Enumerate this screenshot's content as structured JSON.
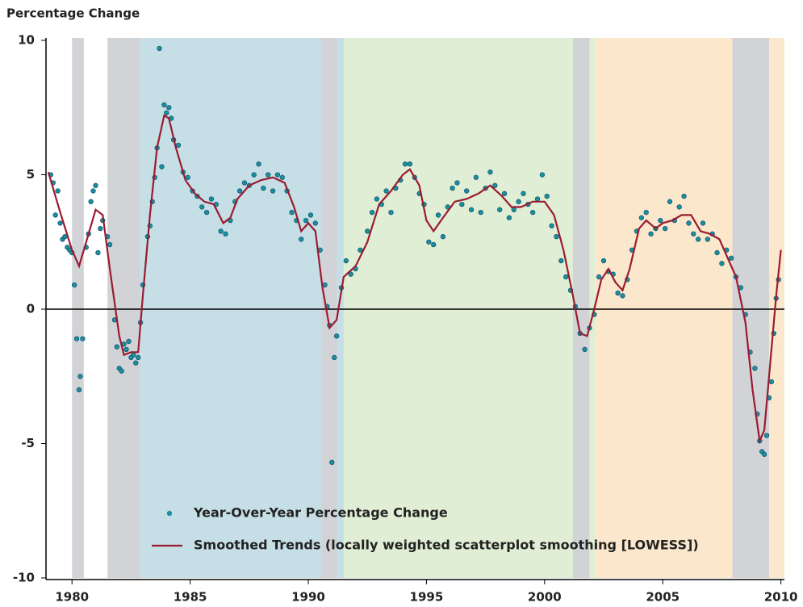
{
  "chart_data": {
    "type": "scatter",
    "y_label": "Percentage Change",
    "xlim": [
      1978.9,
      2010.15
    ],
    "ylim": [
      -10,
      10
    ],
    "xticks": [
      1980,
      1985,
      1990,
      1995,
      2000,
      2005,
      2010
    ],
    "yticks": [
      -10,
      -5,
      0,
      5,
      10
    ],
    "zero_line": 0,
    "legend": "lower center",
    "shaded_regions": [
      {
        "start": 1982.9,
        "end": 1991.5,
        "color": "#c6dee5"
      },
      {
        "start": 1991.5,
        "end": 2002.15,
        "color": "#dfeed4"
      },
      {
        "start": 2002.15,
        "end": 2010.15,
        "color": "#fbe7cb"
      },
      {
        "start": 1980.0,
        "end": 1980.5,
        "color": "#d2d3d7"
      },
      {
        "start": 1981.5,
        "end": 1982.9,
        "color": "#d2d3d7"
      },
      {
        "start": 1990.55,
        "end": 1991.2,
        "color": "#d2d3d7"
      },
      {
        "start": 2001.2,
        "end": 2001.9,
        "color": "#d2d3d7"
      },
      {
        "start": 2007.95,
        "end": 2009.5,
        "color": "#d2d3d7"
      }
    ],
    "series": [
      {
        "name": "Year-Over-Year Percentage Change",
        "type": "scatter",
        "color": "#1b8fa0",
        "x": [
          1979.1,
          1979.2,
          1979.3,
          1979.4,
          1979.5,
          1979.6,
          1979.7,
          1979.8,
          1979.9,
          1980.0,
          1980.1,
          1980.2,
          1980.3,
          1980.35,
          1980.45,
          1980.6,
          1980.7,
          1980.8,
          1980.9,
          1981.0,
          1981.1,
          1981.2,
          1981.3,
          1981.5,
          1981.6,
          1981.8,
          1981.9,
          1982.0,
          1982.1,
          1982.2,
          1982.3,
          1982.4,
          1982.5,
          1982.6,
          1982.7,
          1982.8,
          1982.9,
          1983.0,
          1983.2,
          1983.3,
          1983.4,
          1983.5,
          1983.6,
          1983.7,
          1983.8,
          1983.9,
          1984.0,
          1984.1,
          1984.2,
          1984.3,
          1984.5,
          1984.7,
          1984.9,
          1985.1,
          1985.3,
          1985.5,
          1985.7,
          1985.9,
          1986.1,
          1986.3,
          1986.5,
          1986.7,
          1986.9,
          1987.1,
          1987.3,
          1987.5,
          1987.7,
          1987.9,
          1988.1,
          1988.3,
          1988.5,
          1988.7,
          1988.9,
          1989.1,
          1989.3,
          1989.5,
          1989.7,
          1989.9,
          1990.1,
          1990.3,
          1990.5,
          1990.7,
          1990.8,
          1990.9,
          1991.0,
          1991.1,
          1991.2,
          1991.4,
          1991.6,
          1991.8,
          1992.0,
          1992.2,
          1992.5,
          1992.7,
          1992.9,
          1993.1,
          1993.3,
          1993.5,
          1993.7,
          1993.9,
          1994.1,
          1994.3,
          1994.5,
          1994.7,
          1994.9,
          1995.1,
          1995.3,
          1995.5,
          1995.7,
          1995.9,
          1996.1,
          1996.3,
          1996.5,
          1996.7,
          1996.9,
          1997.1,
          1997.3,
          1997.5,
          1997.7,
          1997.9,
          1998.1,
          1998.3,
          1998.5,
          1998.7,
          1998.9,
          1999.1,
          1999.3,
          1999.5,
          1999.7,
          1999.9,
          2000.1,
          2000.3,
          2000.5,
          2000.7,
          2000.9,
          2001.1,
          2001.3,
          2001.5,
          2001.7,
          2001.9,
          2002.1,
          2002.3,
          2002.5,
          2002.7,
          2002.9,
          2003.1,
          2003.3,
          2003.5,
          2003.7,
          2003.9,
          2004.1,
          2004.3,
          2004.5,
          2004.7,
          2004.9,
          2005.1,
          2005.3,
          2005.5,
          2005.7,
          2005.9,
          2006.1,
          2006.3,
          2006.5,
          2006.7,
          2006.9,
          2007.1,
          2007.3,
          2007.5,
          2007.7,
          2007.9,
          2008.1,
          2008.3,
          2008.5,
          2008.7,
          2008.9,
          2009.0,
          2009.1,
          2009.2,
          2009.3,
          2009.4,
          2009.5,
          2009.6,
          2009.7,
          2009.8,
          2009.9
        ],
        "values": [
          5.0,
          4.7,
          3.5,
          4.4,
          3.2,
          2.6,
          2.7,
          2.3,
          2.2,
          2.1,
          0.9,
          -1.1,
          -3.0,
          -2.5,
          -1.1,
          2.3,
          2.8,
          4.0,
          4.4,
          4.6,
          2.1,
          3.0,
          3.3,
          2.7,
          2.4,
          -0.4,
          -1.4,
          -2.2,
          -2.3,
          -1.3,
          -1.5,
          -1.2,
          -1.8,
          -1.7,
          -2.0,
          -1.8,
          -0.5,
          0.9,
          2.7,
          3.1,
          4.0,
          4.9,
          6.0,
          9.7,
          5.3,
          7.6,
          7.3,
          7.5,
          7.1,
          6.3,
          6.1,
          5.1,
          4.9,
          4.4,
          4.2,
          3.8,
          3.6,
          4.1,
          3.9,
          2.9,
          2.8,
          3.3,
          4.0,
          4.4,
          4.7,
          4.6,
          5.0,
          5.4,
          4.5,
          5.0,
          4.4,
          5.0,
          4.9,
          4.4,
          3.6,
          3.3,
          2.6,
          3.3,
          3.5,
          3.2,
          2.2,
          0.9,
          0.1,
          -0.6,
          -5.7,
          -1.8,
          -1.0,
          0.8,
          1.8,
          1.3,
          1.5,
          2.2,
          2.9,
          3.6,
          4.1,
          3.9,
          4.4,
          3.6,
          4.5,
          4.8,
          5.4,
          5.4,
          4.9,
          4.3,
          3.9,
          2.5,
          2.4,
          3.5,
          2.7,
          3.8,
          4.5,
          4.7,
          3.9,
          4.4,
          3.7,
          4.9,
          3.6,
          4.5,
          5.1,
          4.6,
          3.7,
          4.3,
          3.4,
          3.7,
          4.0,
          4.3,
          3.9,
          3.6,
          4.1,
          5.0,
          4.2,
          3.1,
          2.7,
          1.8,
          1.2,
          0.7,
          0.1,
          -0.9,
          -1.5,
          -0.7,
          -0.2,
          1.2,
          1.8,
          1.4,
          1.3,
          0.6,
          0.5,
          1.1,
          2.2,
          2.9,
          3.4,
          3.6,
          2.8,
          3.0,
          3.3,
          3.0,
          4.0,
          3.3,
          3.8,
          4.2,
          3.2,
          2.8,
          2.6,
          3.2,
          2.6,
          2.8,
          2.1,
          1.7,
          2.2,
          1.9,
          1.2,
          0.8,
          -0.2,
          -1.6,
          -2.2,
          -3.9,
          -4.9,
          -5.3,
          -5.4,
          -4.7,
          -3.3,
          -2.7,
          -0.9,
          0.4,
          1.1
        ]
      },
      {
        "name": "Smoothed Trends (locally weighted scatterplot smoothing [LOWESS])",
        "type": "line",
        "color": "#9b1b30",
        "x": [
          1979.0,
          1979.5,
          1980.0,
          1980.3,
          1980.6,
          1981.0,
          1981.3,
          1981.6,
          1982.0,
          1982.2,
          1982.5,
          1982.8,
          1983.0,
          1983.3,
          1983.6,
          1983.9,
          1984.1,
          1984.4,
          1984.8,
          1985.2,
          1985.6,
          1986.0,
          1986.4,
          1986.7,
          1987.0,
          1987.5,
          1988.0,
          1988.5,
          1989.0,
          1989.4,
          1989.7,
          1990.0,
          1990.3,
          1990.6,
          1990.9,
          1991.2,
          1991.5,
          1992.0,
          1992.5,
          1993.0,
          1993.5,
          1994.0,
          1994.3,
          1994.7,
          1995.0,
          1995.3,
          1995.7,
          1996.2,
          1996.7,
          1997.2,
          1997.7,
          1998.2,
          1998.6,
          1999.0,
          1999.5,
          2000.0,
          2000.4,
          2000.8,
          2001.2,
          2001.5,
          2001.8,
          2002.1,
          2002.4,
          2002.7,
          2003.0,
          2003.3,
          2003.6,
          2004.0,
          2004.3,
          2004.7,
          2005.0,
          2005.4,
          2005.8,
          2006.2,
          2006.6,
          2007.0,
          2007.4,
          2007.8,
          2008.1,
          2008.5,
          2008.8,
          2009.1,
          2009.3,
          2009.6,
          2009.8,
          2010.0
        ],
        "values": [
          5.1,
          3.6,
          2.2,
          1.6,
          2.5,
          3.7,
          3.5,
          1.5,
          -1.0,
          -1.7,
          -1.6,
          -1.6,
          0.5,
          3.5,
          6.0,
          7.2,
          7.1,
          6.0,
          4.8,
          4.3,
          4.0,
          3.9,
          3.2,
          3.4,
          4.1,
          4.6,
          4.8,
          4.9,
          4.7,
          3.8,
          2.9,
          3.2,
          2.9,
          0.8,
          -0.7,
          -0.4,
          1.2,
          1.6,
          2.5,
          3.9,
          4.4,
          5.0,
          5.2,
          4.6,
          3.3,
          2.9,
          3.4,
          4.0,
          4.1,
          4.3,
          4.6,
          4.2,
          3.8,
          3.8,
          4.0,
          4.0,
          3.5,
          2.2,
          0.5,
          -0.9,
          -1.0,
          0.0,
          1.1,
          1.5,
          1.0,
          0.7,
          1.5,
          3.0,
          3.3,
          3.0,
          3.2,
          3.3,
          3.5,
          3.5,
          2.9,
          2.8,
          2.6,
          1.8,
          1.2,
          -0.5,
          -3.0,
          -4.9,
          -4.5,
          -1.5,
          0.5,
          2.2
        ]
      }
    ]
  }
}
